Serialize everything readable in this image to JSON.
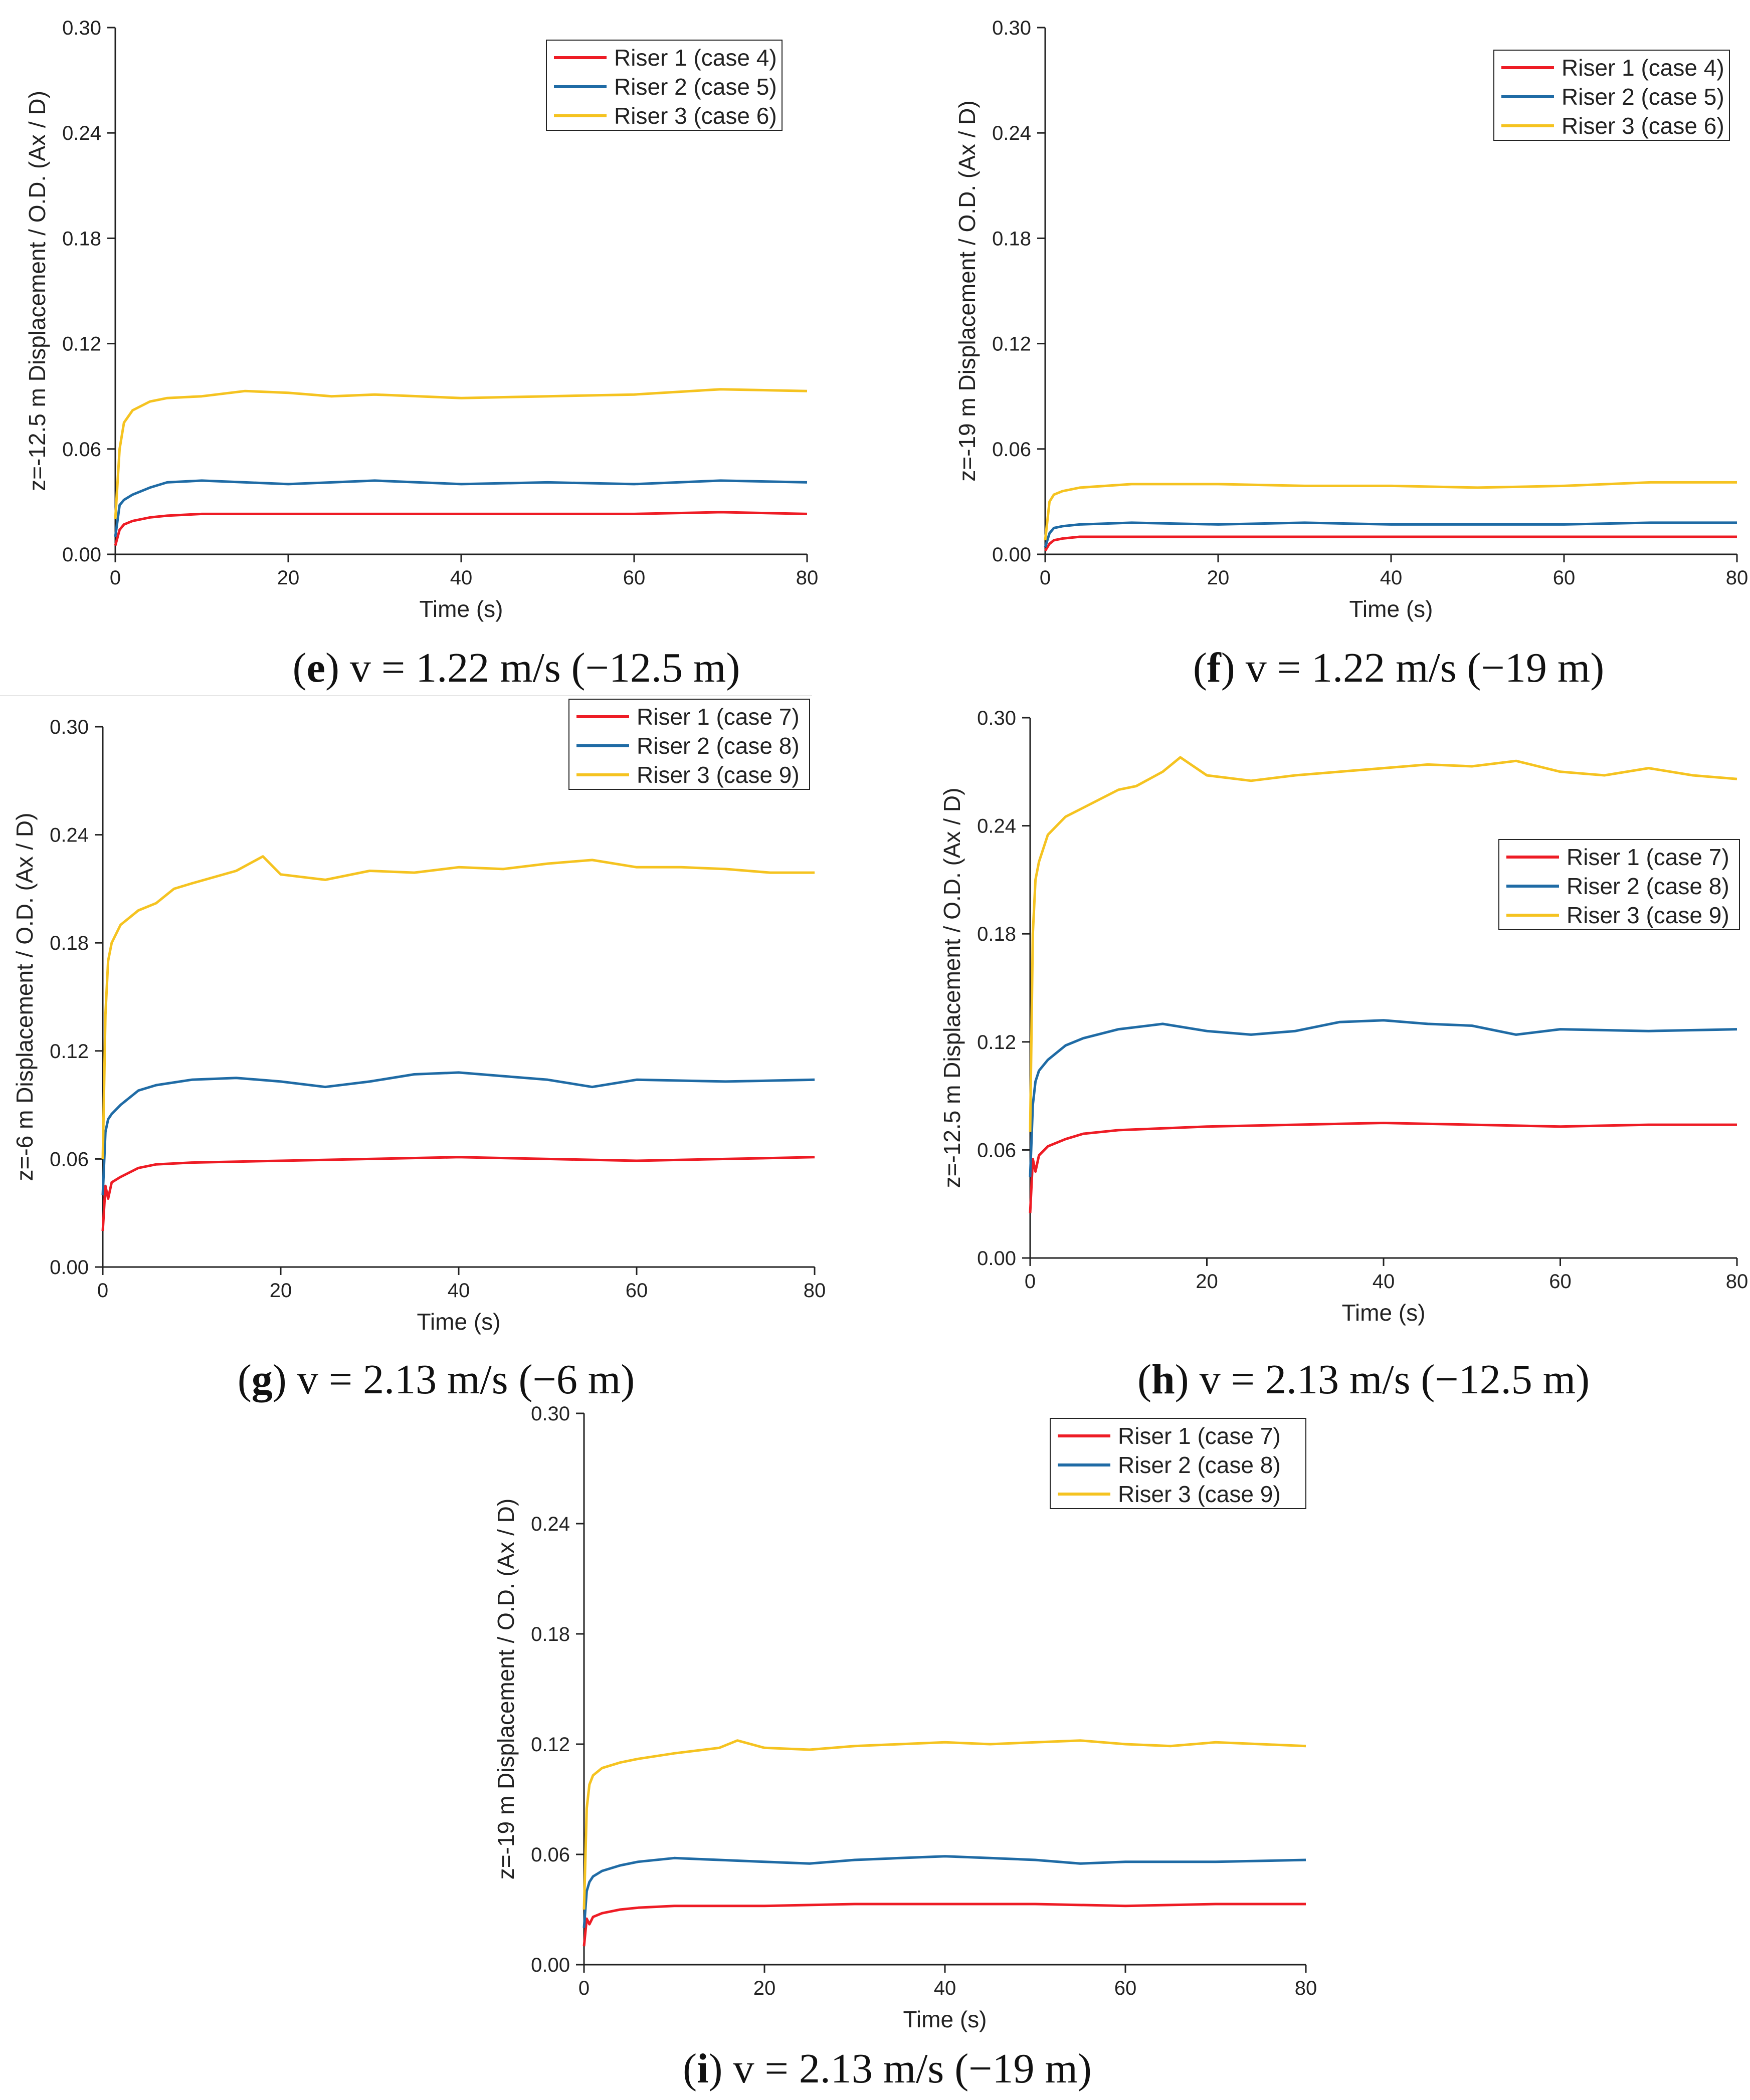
{
  "colors": {
    "riser1": "#ee1c25",
    "riser2": "#1f6ba5",
    "riser3": "#f5c320",
    "axis": "#222222"
  },
  "chart_data": [
    {
      "panel": "e",
      "type": "line",
      "ylabel": "z=-12.5 m Displacement / O.D. (Ax / D)",
      "xlabel": "Time (s)",
      "xlim": [
        0,
        80
      ],
      "ylim": [
        0,
        0.3
      ],
      "xticks": [
        "0",
        "20",
        "40",
        "60",
        "80"
      ],
      "yticks": [
        "0.00",
        "0.06",
        "0.12",
        "0.18",
        "0.24",
        "0.30"
      ],
      "legend_position": "top-right",
      "series": [
        {
          "name": "Riser 1 (case 4)",
          "x": [
            0,
            0.5,
            1,
            2,
            4,
            6,
            10,
            20,
            30,
            40,
            50,
            60,
            70,
            80
          ],
          "values": [
            0.005,
            0.014,
            0.017,
            0.019,
            0.021,
            0.022,
            0.023,
            0.023,
            0.023,
            0.023,
            0.023,
            0.023,
            0.024,
            0.023
          ]
        },
        {
          "name": "Riser 2 (case 5)",
          "x": [
            0,
            0.5,
            1,
            2,
            4,
            6,
            10,
            15,
            20,
            30,
            40,
            50,
            60,
            70,
            80
          ],
          "values": [
            0.01,
            0.028,
            0.031,
            0.034,
            0.038,
            0.041,
            0.042,
            0.041,
            0.04,
            0.042,
            0.04,
            0.041,
            0.04,
            0.042,
            0.041
          ]
        },
        {
          "name": "Riser 3 (case 6)",
          "x": [
            0,
            0.5,
            1,
            2,
            4,
            6,
            10,
            15,
            20,
            25,
            30,
            40,
            50,
            60,
            70,
            80
          ],
          "values": [
            0.02,
            0.06,
            0.075,
            0.082,
            0.087,
            0.089,
            0.09,
            0.093,
            0.092,
            0.09,
            0.091,
            0.089,
            0.09,
            0.091,
            0.094,
            0.093
          ]
        }
      ],
      "caption": {
        "letter": "e",
        "text": " v = 1.22 m/s (−12.5 m)"
      }
    },
    {
      "panel": "f",
      "type": "line",
      "ylabel": "z=-19 m Displacement / O.D. (Ax / D)",
      "xlabel": "Time (s)",
      "xlim": [
        0,
        80
      ],
      "ylim": [
        0,
        0.3
      ],
      "xticks": [
        "0",
        "20",
        "40",
        "60",
        "80"
      ],
      "yticks": [
        "0.00",
        "0.06",
        "0.12",
        "0.18",
        "0.24",
        "0.30"
      ],
      "legend_position": "top-right",
      "series": [
        {
          "name": "Riser 1 (case 4)",
          "x": [
            0,
            0.5,
            1,
            2,
            4,
            10,
            20,
            40,
            60,
            80
          ],
          "values": [
            0.002,
            0.006,
            0.008,
            0.009,
            0.01,
            0.01,
            0.01,
            0.01,
            0.01,
            0.01
          ]
        },
        {
          "name": "Riser 2 (case 5)",
          "x": [
            0,
            0.5,
            1,
            2,
            4,
            10,
            20,
            30,
            40,
            50,
            60,
            70,
            80
          ],
          "values": [
            0.004,
            0.012,
            0.015,
            0.016,
            0.017,
            0.018,
            0.017,
            0.018,
            0.017,
            0.017,
            0.017,
            0.018,
            0.018
          ]
        },
        {
          "name": "Riser 3 (case 6)",
          "x": [
            0,
            0.5,
            1,
            2,
            4,
            10,
            20,
            30,
            40,
            50,
            60,
            70,
            80
          ],
          "values": [
            0.008,
            0.03,
            0.034,
            0.036,
            0.038,
            0.04,
            0.04,
            0.039,
            0.039,
            0.038,
            0.039,
            0.041,
            0.041
          ]
        }
      ],
      "caption": {
        "letter": "f",
        "text": " v = 1.22 m/s (−19 m)"
      }
    },
    {
      "panel": "g",
      "type": "line",
      "ylabel": "z=-6 m Displacement / O.D. (Ax / D)",
      "xlabel": "Time (s)",
      "xlim": [
        0,
        80
      ],
      "ylim": [
        0,
        0.3
      ],
      "xticks": [
        "0",
        "20",
        "40",
        "60",
        "80"
      ],
      "yticks": [
        "0.00",
        "0.06",
        "0.12",
        "0.18",
        "0.24",
        "0.30"
      ],
      "legend_position": "top-right",
      "series": [
        {
          "name": "Riser 1 (case 7)",
          "x": [
            0,
            0.3,
            0.6,
            1,
            2,
            4,
            6,
            10,
            20,
            30,
            40,
            50,
            60,
            70,
            80
          ],
          "values": [
            0.02,
            0.045,
            0.038,
            0.047,
            0.05,
            0.055,
            0.057,
            0.058,
            0.059,
            0.06,
            0.061,
            0.06,
            0.059,
            0.06,
            0.061
          ]
        },
        {
          "name": "Riser 2 (case 8)",
          "x": [
            0,
            0.3,
            0.6,
            1,
            2,
            4,
            6,
            10,
            15,
            20,
            25,
            30,
            35,
            40,
            45,
            50,
            55,
            60,
            70,
            80
          ],
          "values": [
            0.04,
            0.075,
            0.082,
            0.085,
            0.09,
            0.098,
            0.101,
            0.104,
            0.105,
            0.103,
            0.1,
            0.103,
            0.107,
            0.108,
            0.106,
            0.104,
            0.1,
            0.104,
            0.103,
            0.104
          ]
        },
        {
          "name": "Riser 3 (case 9)",
          "x": [
            0,
            0.3,
            0.6,
            1,
            2,
            4,
            6,
            8,
            10,
            15,
            18,
            20,
            25,
            30,
            35,
            40,
            45,
            50,
            55,
            60,
            65,
            70,
            75,
            80
          ],
          "values": [
            0.06,
            0.14,
            0.17,
            0.18,
            0.19,
            0.198,
            0.202,
            0.21,
            0.213,
            0.22,
            0.228,
            0.218,
            0.215,
            0.22,
            0.219,
            0.222,
            0.221,
            0.224,
            0.226,
            0.222,
            0.222,
            0.221,
            0.219,
            0.219
          ]
        }
      ],
      "caption": {
        "letter": "g",
        "text": " v = 2.13 m/s (−6 m)"
      }
    },
    {
      "panel": "h",
      "type": "line",
      "ylabel": "z=-12.5 m Displacement / O.D. (Ax / D)",
      "xlabel": "Time (s)",
      "xlim": [
        0,
        80
      ],
      "ylim": [
        0,
        0.3
      ],
      "xticks": [
        "0",
        "20",
        "40",
        "60",
        "80"
      ],
      "yticks": [
        "0.00",
        "0.06",
        "0.12",
        "0.18",
        "0.24",
        "0.30"
      ],
      "legend_position": "middle-right",
      "series": [
        {
          "name": "Riser 1 (case 7)",
          "x": [
            0,
            0.3,
            0.6,
            1,
            2,
            4,
            6,
            10,
            20,
            30,
            40,
            50,
            60,
            70,
            80
          ],
          "values": [
            0.025,
            0.055,
            0.048,
            0.057,
            0.062,
            0.066,
            0.069,
            0.071,
            0.073,
            0.074,
            0.075,
            0.074,
            0.073,
            0.074,
            0.074
          ]
        },
        {
          "name": "Riser 2 (case 8)",
          "x": [
            0,
            0.3,
            0.6,
            1,
            2,
            4,
            6,
            10,
            15,
            20,
            25,
            30,
            35,
            40,
            45,
            50,
            55,
            60,
            70,
            80
          ],
          "values": [
            0.045,
            0.085,
            0.098,
            0.104,
            0.11,
            0.118,
            0.122,
            0.127,
            0.13,
            0.126,
            0.124,
            0.126,
            0.131,
            0.132,
            0.13,
            0.129,
            0.124,
            0.127,
            0.126,
            0.127
          ]
        },
        {
          "name": "Riser 3 (case 9)",
          "x": [
            0,
            0.3,
            0.6,
            1,
            2,
            4,
            6,
            8,
            10,
            12,
            15,
            17,
            20,
            25,
            30,
            35,
            40,
            45,
            50,
            55,
            60,
            65,
            70,
            75,
            80
          ],
          "values": [
            0.07,
            0.18,
            0.21,
            0.22,
            0.235,
            0.245,
            0.25,
            0.255,
            0.26,
            0.262,
            0.27,
            0.278,
            0.268,
            0.265,
            0.268,
            0.27,
            0.272,
            0.274,
            0.273,
            0.276,
            0.27,
            0.268,
            0.272,
            0.268,
            0.266
          ]
        }
      ],
      "caption": {
        "letter": "h",
        "text": " v = 2.13 m/s (−12.5 m)"
      }
    },
    {
      "panel": "i",
      "type": "line",
      "ylabel": "z=-19 m Displacement / O.D. (Ax / D)",
      "xlabel": "Time (s)",
      "xlim": [
        0,
        80
      ],
      "ylim": [
        0,
        0.3
      ],
      "xticks": [
        "0",
        "20",
        "40",
        "60",
        "80"
      ],
      "yticks": [
        "0.00",
        "0.06",
        "0.12",
        "0.18",
        "0.24",
        "0.30"
      ],
      "legend_position": "top-right",
      "series": [
        {
          "name": "Riser 1 (case 7)",
          "x": [
            0,
            0.3,
            0.6,
            1,
            2,
            4,
            6,
            10,
            20,
            30,
            40,
            50,
            60,
            70,
            80
          ],
          "values": [
            0.01,
            0.025,
            0.022,
            0.026,
            0.028,
            0.03,
            0.031,
            0.032,
            0.032,
            0.033,
            0.033,
            0.033,
            0.032,
            0.033,
            0.033
          ]
        },
        {
          "name": "Riser 2 (case 8)",
          "x": [
            0,
            0.3,
            0.6,
            1,
            2,
            4,
            6,
            10,
            15,
            20,
            25,
            30,
            35,
            40,
            45,
            50,
            55,
            60,
            70,
            80
          ],
          "values": [
            0.02,
            0.04,
            0.045,
            0.048,
            0.051,
            0.054,
            0.056,
            0.058,
            0.057,
            0.056,
            0.055,
            0.057,
            0.058,
            0.059,
            0.058,
            0.057,
            0.055,
            0.056,
            0.056,
            0.057
          ]
        },
        {
          "name": "Riser 3 (case 9)",
          "x": [
            0,
            0.3,
            0.6,
            1,
            2,
            4,
            6,
            10,
            15,
            17,
            20,
            25,
            30,
            35,
            40,
            45,
            50,
            55,
            60,
            65,
            70,
            75,
            80
          ],
          "values": [
            0.03,
            0.085,
            0.098,
            0.103,
            0.107,
            0.11,
            0.112,
            0.115,
            0.118,
            0.122,
            0.118,
            0.117,
            0.119,
            0.12,
            0.121,
            0.12,
            0.121,
            0.122,
            0.12,
            0.119,
            0.121,
            0.12,
            0.119
          ]
        }
      ],
      "caption": {
        "letter": "i",
        "text": " v = 2.13 m/s (−19 m)"
      }
    }
  ]
}
